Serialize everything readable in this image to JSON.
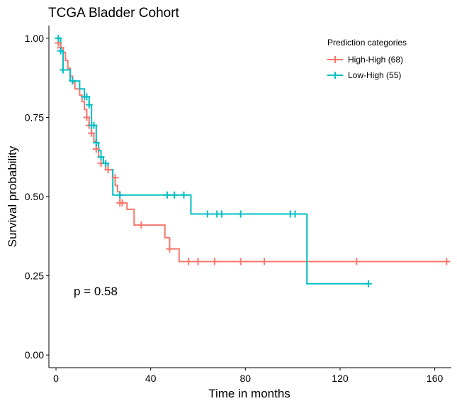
{
  "chart_data": {
    "type": "line",
    "subtype": "kaplan-meier-step",
    "title": "TCGA Bladder Cohort",
    "xlabel": "Time in months",
    "ylabel": "Survival probability",
    "xlim": [
      -3,
      167
    ],
    "ylim": [
      -0.04,
      1.04
    ],
    "xticks": [
      0,
      40,
      80,
      120,
      160
    ],
    "yticks": [
      0.0,
      0.25,
      0.5,
      0.75,
      1.0
    ],
    "ytick_labels": [
      "0.00",
      "0.25",
      "0.50",
      "0.75",
      "1.00"
    ],
    "grid": false,
    "annotation": {
      "text": "p = 0.58",
      "x": 4,
      "y": 0.19
    },
    "legend": {
      "title": "Prediction categories",
      "placement": "top-right",
      "entries": [
        "High-High (68)",
        "Low-High (55)"
      ]
    },
    "series": [
      {
        "name": "High-High (68)",
        "color": "#F8766D",
        "steps": [
          [
            0,
            1.0
          ],
          [
            1,
            0.985
          ],
          [
            2,
            0.97
          ],
          [
            3,
            0.955
          ],
          [
            4,
            0.93
          ],
          [
            5,
            0.905
          ],
          [
            6,
            0.88
          ],
          [
            7,
            0.86
          ],
          [
            8,
            0.84
          ],
          [
            10,
            0.82
          ],
          [
            11,
            0.8
          ],
          [
            12,
            0.775
          ],
          [
            13,
            0.75
          ],
          [
            14,
            0.725
          ],
          [
            15,
            0.7
          ],
          [
            16,
            0.675
          ],
          [
            17,
            0.65
          ],
          [
            18,
            0.625
          ],
          [
            20,
            0.605
          ],
          [
            21,
            0.585
          ],
          [
            24,
            0.56
          ],
          [
            25,
            0.535
          ],
          [
            26,
            0.515
          ],
          [
            27,
            0.48
          ],
          [
            30,
            0.46
          ],
          [
            33,
            0.41
          ],
          [
            46,
            0.37
          ],
          [
            48,
            0.335
          ],
          [
            52,
            0.295
          ],
          [
            166,
            0.295
          ]
        ],
        "censor": [
          [
            1,
            0.985
          ],
          [
            2,
            0.97
          ],
          [
            13,
            0.75
          ],
          [
            14,
            0.725
          ],
          [
            15,
            0.7
          ],
          [
            17,
            0.65
          ],
          [
            19,
            0.605
          ],
          [
            22,
            0.585
          ],
          [
            25,
            0.56
          ],
          [
            27,
            0.48
          ],
          [
            28,
            0.48
          ],
          [
            36,
            0.41
          ],
          [
            48,
            0.335
          ],
          [
            56,
            0.295
          ],
          [
            60,
            0.295
          ],
          [
            67,
            0.295
          ],
          [
            78,
            0.295
          ],
          [
            88,
            0.295
          ],
          [
            127,
            0.295
          ],
          [
            165,
            0.295
          ]
        ]
      },
      {
        "name": "Low-High (55)",
        "color": "#00BFC4",
        "steps": [
          [
            0,
            1.0
          ],
          [
            2,
            0.96
          ],
          [
            3,
            0.9
          ],
          [
            6,
            0.865
          ],
          [
            10,
            0.84
          ],
          [
            12,
            0.815
          ],
          [
            14,
            0.79
          ],
          [
            15,
            0.725
          ],
          [
            17,
            0.67
          ],
          [
            18,
            0.645
          ],
          [
            19,
            0.625
          ],
          [
            20,
            0.605
          ],
          [
            22,
            0.585
          ],
          [
            24,
            0.505
          ],
          [
            57,
            0.445
          ],
          [
            106,
            0.225
          ],
          [
            132,
            0.225
          ]
        ],
        "censor": [
          [
            1,
            1.0
          ],
          [
            2,
            0.96
          ],
          [
            3,
            0.9
          ],
          [
            7,
            0.865
          ],
          [
            12,
            0.815
          ],
          [
            13,
            0.815
          ],
          [
            14,
            0.79
          ],
          [
            15,
            0.725
          ],
          [
            16,
            0.725
          ],
          [
            17,
            0.67
          ],
          [
            19,
            0.625
          ],
          [
            21,
            0.605
          ],
          [
            27,
            0.505
          ],
          [
            47,
            0.505
          ],
          [
            50,
            0.505
          ],
          [
            54,
            0.505
          ],
          [
            64,
            0.445
          ],
          [
            68,
            0.445
          ],
          [
            70,
            0.445
          ],
          [
            78,
            0.445
          ],
          [
            99,
            0.445
          ],
          [
            101,
            0.445
          ],
          [
            132,
            0.225
          ]
        ]
      }
    ]
  }
}
